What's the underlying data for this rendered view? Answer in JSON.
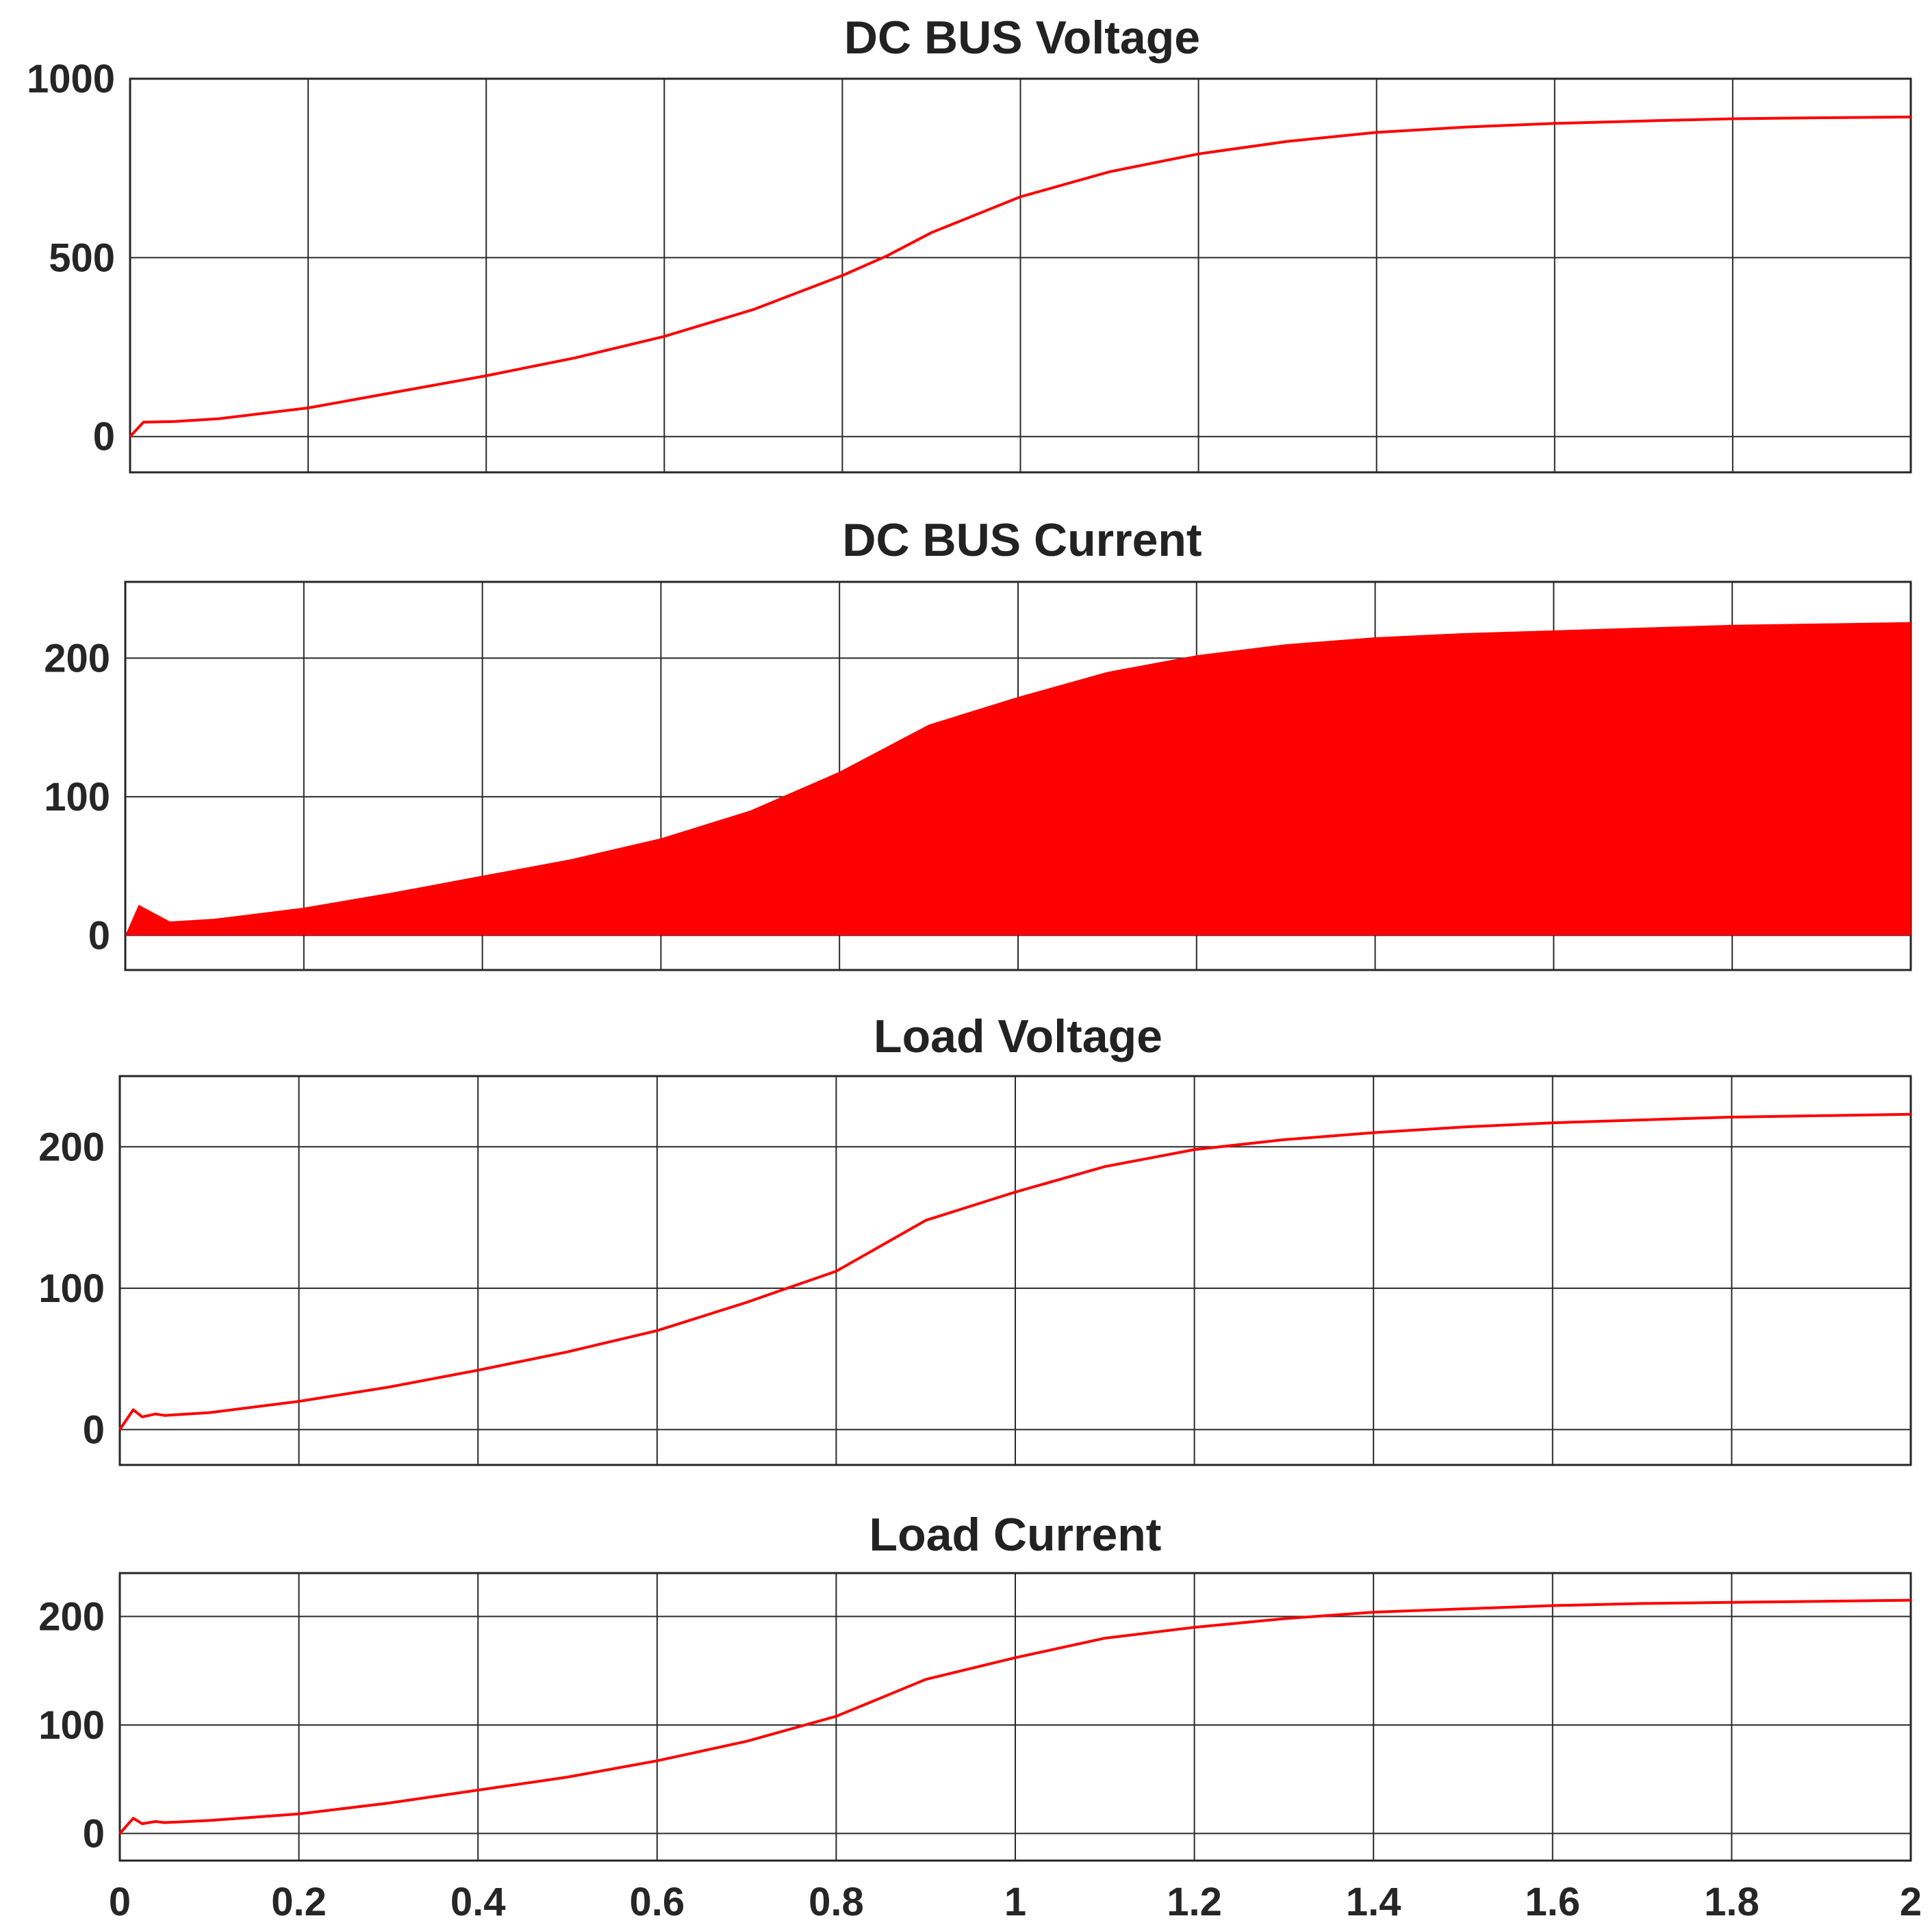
{
  "colors": {
    "trace": "#ff0000",
    "axes": "#262626",
    "grid": "#2b2b2b",
    "background": "#ffffff"
  },
  "chart_data": [
    {
      "type": "line",
      "title": "DC BUS Voltage",
      "xlabel": "",
      "ylabel": "",
      "xlim": [
        0,
        2
      ],
      "ylim": [
        -100,
        1000
      ],
      "xticks": [
        0,
        0.2,
        0.4,
        0.6,
        0.8,
        1,
        1.2,
        1.4,
        1.6,
        1.8,
        2
      ],
      "yticks": [
        0,
        500,
        1000
      ],
      "ytick_labels": [
        "0",
        "500",
        "1000"
      ],
      "grid": true,
      "series": [
        {
          "x": [
            0,
            0.015,
            0.05,
            0.1,
            0.2,
            0.3,
            0.4,
            0.5,
            0.6,
            0.7,
            0.8,
            0.85,
            0.9,
            1.0,
            1.1,
            1.2,
            1.3,
            1.4,
            1.5,
            1.6,
            1.7,
            1.8,
            1.9,
            2.0
          ],
          "y": [
            0,
            40,
            42,
            50,
            80,
            125,
            170,
            220,
            280,
            355,
            450,
            505,
            570,
            670,
            740,
            790,
            825,
            850,
            865,
            875,
            882,
            888,
            891,
            893
          ]
        }
      ]
    },
    {
      "type": "area",
      "title": "DC BUS Current",
      "xlabel": "",
      "ylabel": "",
      "xlim": [
        0,
        2
      ],
      "ylim": [
        -25,
        255
      ],
      "xticks": [
        0,
        0.2,
        0.4,
        0.6,
        0.8,
        1,
        1.2,
        1.4,
        1.6,
        1.8,
        2
      ],
      "yticks": [
        0,
        100,
        200
      ],
      "ytick_labels": [
        "0",
        "100",
        "200"
      ],
      "grid": true,
      "note_lower_bound": 0,
      "series": [
        {
          "x": [
            0,
            0.015,
            0.05,
            0.1,
            0.2,
            0.3,
            0.4,
            0.5,
            0.6,
            0.7,
            0.8,
            0.85,
            0.9,
            1.0,
            1.1,
            1.2,
            1.3,
            1.4,
            1.5,
            1.6,
            1.7,
            1.8,
            1.9,
            2.0
          ],
          "y": [
            0,
            22,
            10,
            12,
            20,
            31,
            43,
            55,
            70,
            90,
            118,
            135,
            152,
            172,
            190,
            202,
            210,
            215,
            218,
            220,
            222,
            224,
            225,
            226
          ]
        }
      ]
    },
    {
      "type": "line",
      "title": "Load Voltage",
      "xlabel": "",
      "ylabel": "",
      "xlim": [
        0,
        2
      ],
      "ylim": [
        -25,
        250
      ],
      "xticks": [
        0,
        0.2,
        0.4,
        0.6,
        0.8,
        1,
        1.2,
        1.4,
        1.6,
        1.8,
        2
      ],
      "yticks": [
        0,
        100,
        200
      ],
      "ytick_labels": [
        "0",
        "100",
        "200"
      ],
      "grid": true,
      "series": [
        {
          "x": [
            0,
            0.015,
            0.025,
            0.04,
            0.05,
            0.1,
            0.2,
            0.3,
            0.4,
            0.5,
            0.6,
            0.7,
            0.8,
            0.85,
            0.9,
            1.0,
            1.1,
            1.2,
            1.3,
            1.4,
            1.5,
            1.6,
            1.7,
            1.8,
            1.9,
            2.0
          ],
          "y": [
            0,
            14,
            9,
            11,
            10,
            12,
            20,
            30,
            42,
            55,
            70,
            90,
            112,
            130,
            148,
            168,
            186,
            198,
            205,
            210,
            214,
            217,
            219,
            221,
            222,
            223
          ]
        }
      ]
    },
    {
      "type": "line",
      "title": "Load Current",
      "xlabel": "",
      "ylabel": "",
      "xlim": [
        0,
        2
      ],
      "ylim": [
        -25,
        240
      ],
      "xticks": [
        0,
        0.2,
        0.4,
        0.6,
        0.8,
        1,
        1.2,
        1.4,
        1.6,
        1.8,
        2
      ],
      "xtick_labels": [
        "0",
        "0.2",
        "0.4",
        "0.6",
        "0.8",
        "1",
        "1.2",
        "1.4",
        "1.6",
        "1.8",
        "2"
      ],
      "yticks": [
        0,
        100,
        200
      ],
      "ytick_labels": [
        "0",
        "100",
        "200"
      ],
      "grid": true,
      "series": [
        {
          "x": [
            0,
            0.015,
            0.025,
            0.04,
            0.05,
            0.1,
            0.2,
            0.3,
            0.4,
            0.5,
            0.6,
            0.7,
            0.8,
            0.85,
            0.9,
            1.0,
            1.1,
            1.2,
            1.3,
            1.4,
            1.5,
            1.6,
            1.7,
            1.8,
            1.9,
            2.0
          ],
          "y": [
            0,
            14,
            9,
            11,
            10,
            12,
            18,
            28,
            40,
            52,
            67,
            85,
            108,
            125,
            142,
            162,
            180,
            190,
            198,
            204,
            207,
            210,
            212,
            213,
            214,
            215
          ]
        }
      ]
    }
  ]
}
